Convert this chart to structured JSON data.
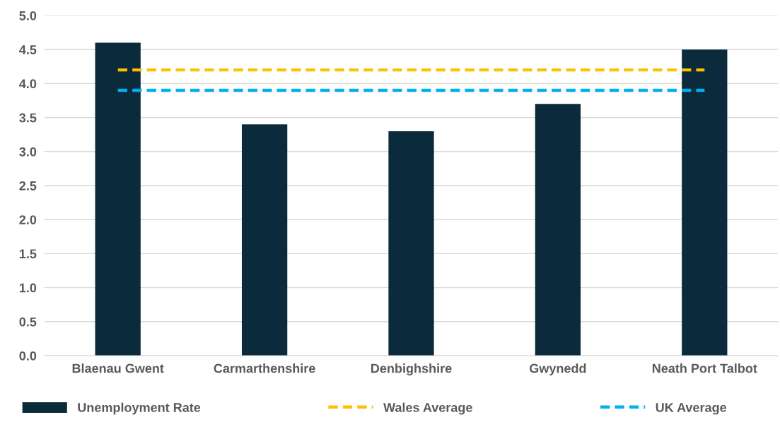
{
  "chart_data": {
    "type": "bar",
    "categories": [
      "Blaenau Gwent",
      "Carmarthenshire",
      "Denbighshire",
      "Gwynedd",
      "Neath Port Talbot"
    ],
    "series": [
      {
        "name": "Unemployment Rate",
        "color": "#0b2a3b",
        "values": [
          4.6,
          3.4,
          3.3,
          3.7,
          4.5
        ]
      },
      {
        "name": "Wales Average",
        "type": "line",
        "line_style": "dashed",
        "marker": "none",
        "color": "#ffc000",
        "values": [
          4.2,
          4.2,
          4.2,
          4.2,
          4.2
        ]
      },
      {
        "name": "UK Average",
        "type": "line",
        "line_style": "dashed",
        "marker": "none",
        "color": "#00b0f0",
        "values": [
          3.9,
          3.9,
          3.9,
          3.9,
          3.9
        ]
      }
    ],
    "ylim": [
      0,
      5
    ],
    "yticks": [
      {
        "value": 0,
        "label": "0.0"
      },
      {
        "value": 0.5,
        "label": "0.5"
      },
      {
        "value": 1,
        "label": "1.0"
      },
      {
        "value": 1.5,
        "label": "1.5"
      },
      {
        "value": 2,
        "label": "2.0"
      },
      {
        "value": 2.5,
        "label": "2.5"
      },
      {
        "value": 3,
        "label": "3.0"
      },
      {
        "value": 3.5,
        "label": "3.5"
      },
      {
        "value": 4,
        "label": "4.0"
      },
      {
        "value": 4.5,
        "label": "4.5"
      },
      {
        "value": 5,
        "label": "5.0"
      }
    ],
    "grid": "y",
    "legend": "bottom"
  }
}
